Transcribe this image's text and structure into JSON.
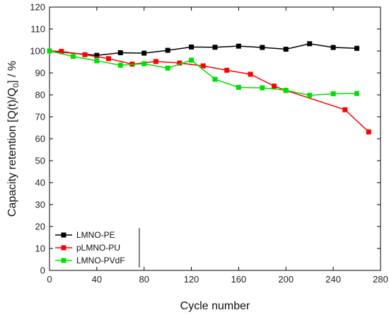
{
  "chart_data": {
    "type": "line",
    "xlabel": "Cycle number",
    "ylabel": "Capacity retention [Q(t)/Q",
    "ylabel_sub": "0",
    "ylabel_end": "] / %",
    "xlim": [
      0,
      280
    ],
    "ylim": [
      0,
      120
    ],
    "xticks": [
      0,
      40,
      80,
      120,
      160,
      200,
      240,
      280
    ],
    "yticks": [
      0,
      10,
      20,
      30,
      40,
      50,
      60,
      70,
      80,
      90,
      100,
      110,
      120
    ],
    "legend_position": "bottom-left",
    "grid": false,
    "series": [
      {
        "name": "LMNO-PE",
        "color": "#000000",
        "marker": "square",
        "x": [
          0,
          40,
          60,
          80,
          100,
          120,
          140,
          160,
          180,
          200,
          220,
          240,
          260
        ],
        "y": [
          100,
          98,
          99.2,
          99,
          100.3,
          101.8,
          101.7,
          102.2,
          101.6,
          100.8,
          103.3,
          101.6,
          101.2
        ]
      },
      {
        "name": "pLMNO-PU",
        "color": "#ff0000",
        "marker": "square",
        "x": [
          0,
          10,
          30,
          50,
          70,
          90,
          110,
          130,
          150,
          170,
          190,
          200,
          250,
          270
        ],
        "y": [
          100,
          99.8,
          98.3,
          96.5,
          94,
          95.2,
          94.5,
          93.2,
          91.2,
          89.4,
          84,
          82,
          73.2,
          63.1
        ]
      },
      {
        "name": "LMNO-PVdF",
        "color": "#00e000",
        "marker": "square",
        "x": [
          0,
          20,
          40,
          60,
          80,
          100,
          120,
          140,
          160,
          180,
          200,
          220,
          240,
          260
        ],
        "y": [
          100,
          97.5,
          95.5,
          93.5,
          94.2,
          92.2,
          95.8,
          87.1,
          83.4,
          83.2,
          82.1,
          79.8,
          80.5,
          80.6
        ]
      }
    ]
  }
}
